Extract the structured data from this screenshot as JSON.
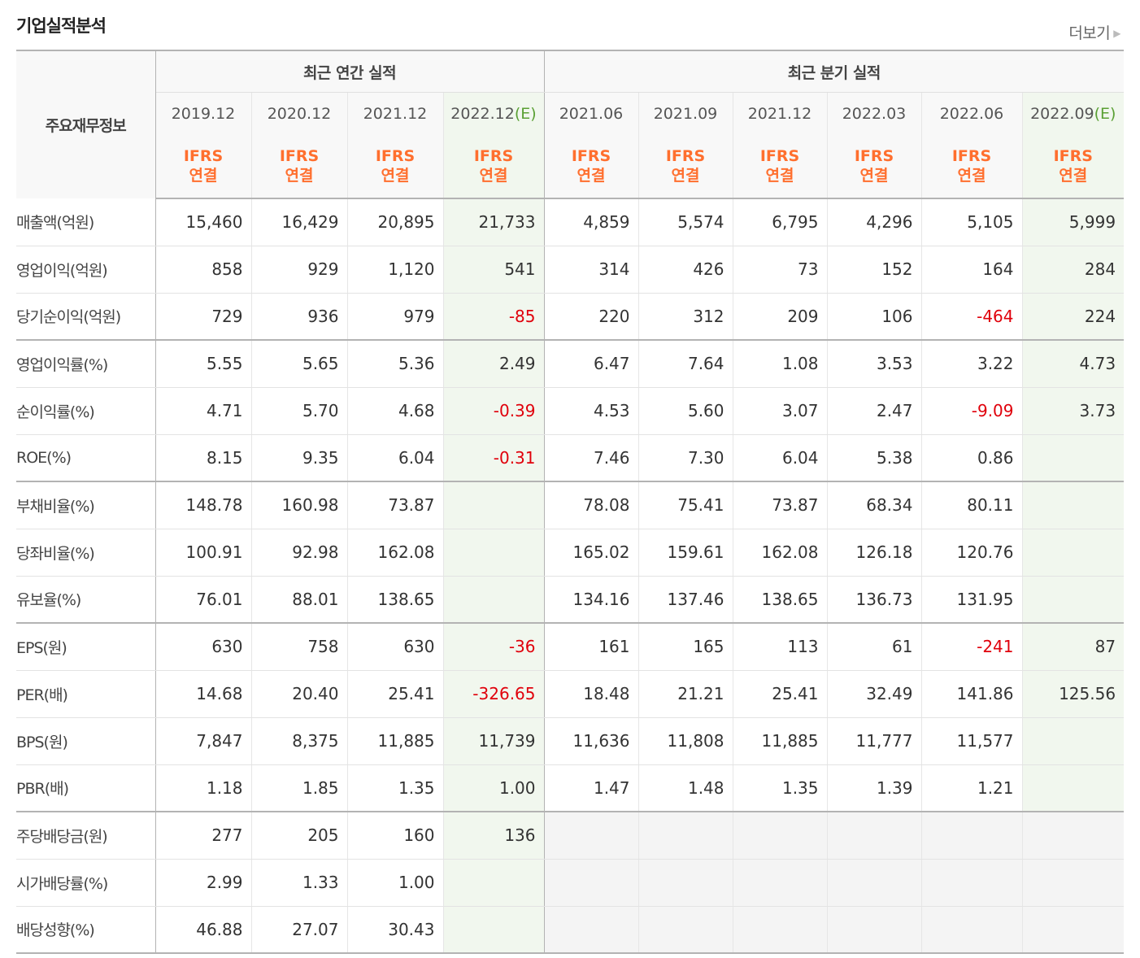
{
  "title": "기업실적분석",
  "more_label": "더보기",
  "corner_label": "주요재무정보",
  "groups": {
    "annual": "최근 연간 실적",
    "quarterly": "최근 분기 실적"
  },
  "periods": [
    {
      "label": "2019.12",
      "est": ""
    },
    {
      "label": "2020.12",
      "est": ""
    },
    {
      "label": "2021.12",
      "est": ""
    },
    {
      "label": "2022.12",
      "est": "(E)"
    },
    {
      "label": "2021.06",
      "est": ""
    },
    {
      "label": "2021.09",
      "est": ""
    },
    {
      "label": "2021.12",
      "est": ""
    },
    {
      "label": "2022.03",
      "est": ""
    },
    {
      "label": "2022.06",
      "est": ""
    },
    {
      "label": "2022.09",
      "est": "(E)"
    }
  ],
  "ifrs": {
    "line1": "IFRS",
    "line2": "연결"
  },
  "rows": [
    {
      "label": "매출액(억원)",
      "values": [
        "15,460",
        "16,429",
        "20,895",
        "21,733",
        "4,859",
        "5,574",
        "6,795",
        "4,296",
        "5,105",
        "5,999"
      ]
    },
    {
      "label": "영업이익(억원)",
      "values": [
        "858",
        "929",
        "1,120",
        "541",
        "314",
        "426",
        "73",
        "152",
        "164",
        "284"
      ]
    },
    {
      "label": "당기순이익(억원)",
      "values": [
        "729",
        "936",
        "979",
        "-85",
        "220",
        "312",
        "209",
        "106",
        "-464",
        "224"
      ]
    },
    {
      "label": "영업이익률(%)",
      "values": [
        "5.55",
        "5.65",
        "5.36",
        "2.49",
        "6.47",
        "7.64",
        "1.08",
        "3.53",
        "3.22",
        "4.73"
      ]
    },
    {
      "label": "순이익률(%)",
      "values": [
        "4.71",
        "5.70",
        "4.68",
        "-0.39",
        "4.53",
        "5.60",
        "3.07",
        "2.47",
        "-9.09",
        "3.73"
      ]
    },
    {
      "label": "ROE(%)",
      "values": [
        "8.15",
        "9.35",
        "6.04",
        "-0.31",
        "7.46",
        "7.30",
        "6.04",
        "5.38",
        "0.86",
        ""
      ]
    },
    {
      "label": "부채비율(%)",
      "values": [
        "148.78",
        "160.98",
        "73.87",
        "",
        "78.08",
        "75.41",
        "73.87",
        "68.34",
        "80.11",
        ""
      ]
    },
    {
      "label": "당좌비율(%)",
      "values": [
        "100.91",
        "92.98",
        "162.08",
        "",
        "165.02",
        "159.61",
        "162.08",
        "126.18",
        "120.76",
        ""
      ]
    },
    {
      "label": "유보율(%)",
      "values": [
        "76.01",
        "88.01",
        "138.65",
        "",
        "134.16",
        "137.46",
        "138.65",
        "136.73",
        "131.95",
        ""
      ]
    },
    {
      "label": "EPS(원)",
      "values": [
        "630",
        "758",
        "630",
        "-36",
        "161",
        "165",
        "113",
        "61",
        "-241",
        "87"
      ]
    },
    {
      "label": "PER(배)",
      "values": [
        "14.68",
        "20.40",
        "25.41",
        "-326.65",
        "18.48",
        "21.21",
        "25.41",
        "32.49",
        "141.86",
        "125.56"
      ]
    },
    {
      "label": "BPS(원)",
      "values": [
        "7,847",
        "8,375",
        "11,885",
        "11,739",
        "11,636",
        "11,808",
        "11,885",
        "11,777",
        "11,577",
        ""
      ]
    },
    {
      "label": "PBR(배)",
      "values": [
        "1.18",
        "1.85",
        "1.35",
        "1.00",
        "1.47",
        "1.48",
        "1.35",
        "1.39",
        "1.21",
        ""
      ]
    },
    {
      "label": "주당배당금(원)",
      "values": [
        "277",
        "205",
        "160",
        "136",
        "",
        "",
        "",
        "",
        "",
        ""
      ]
    },
    {
      "label": "시가배당률(%)",
      "values": [
        "2.99",
        "1.33",
        "1.00",
        "",
        "",
        "",
        "",
        "",
        "",
        ""
      ]
    },
    {
      "label": "배당성향(%)",
      "values": [
        "46.88",
        "27.07",
        "30.43",
        "",
        "",
        "",
        "",
        "",
        "",
        ""
      ]
    }
  ],
  "colors": {
    "negative": "#e0000b",
    "ifrs": "#ff6f2e",
    "estimate_bg": "#f1f7ee",
    "estimate_mark": "#5aa034"
  }
}
